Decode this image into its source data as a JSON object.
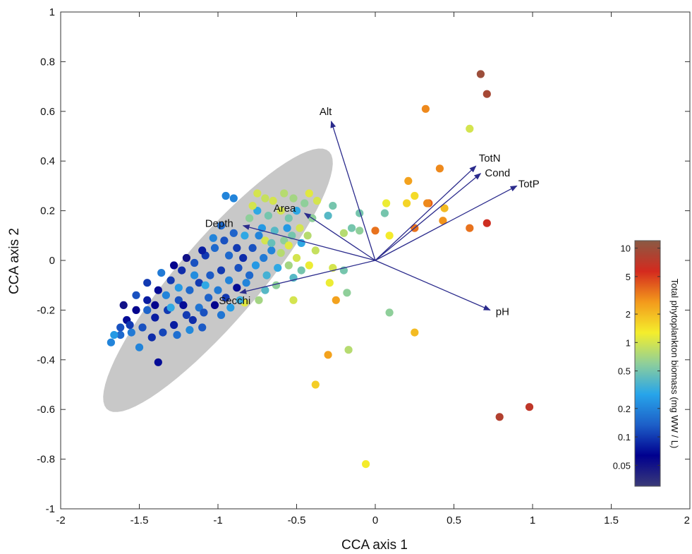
{
  "chart_data": {
    "type": "scatter",
    "xlabel": "CCA axis 1",
    "ylabel": "CCA axis 2",
    "xlim": [
      -2,
      2
    ],
    "ylim": [
      -1,
      1
    ],
    "xticks": [
      -2,
      -1.5,
      -1,
      -0.5,
      0,
      0.5,
      1,
      1.5,
      2
    ],
    "xtick_labels": [
      "-2",
      "-1.5",
      "-1",
      "-0.5",
      "0",
      "0.5",
      "1",
      "1.5",
      "2"
    ],
    "yticks": [
      -1,
      -0.8,
      -0.6,
      -0.4,
      -0.2,
      0,
      0.2,
      0.4,
      0.6,
      0.8,
      1
    ],
    "ytick_labels": [
      "-1",
      "-0.8",
      "-0.6",
      "-0.4",
      "-0.2",
      "0",
      "0.2",
      "0.4",
      "0.6",
      "0.8",
      "1"
    ],
    "grid": false,
    "ellipse": {
      "cx": -1.0,
      "cy": -0.08,
      "rx": 0.88,
      "ry": 0.2,
      "angle_deg": 35,
      "color": "#c8c8c8"
    },
    "vectors": [
      {
        "label": "Alt",
        "x": -0.28,
        "y": 0.56
      },
      {
        "label": "TotN",
        "x": 0.64,
        "y": 0.38
      },
      {
        "label": "Cond",
        "x": 0.67,
        "y": 0.35
      },
      {
        "label": "TotP",
        "x": 0.9,
        "y": 0.3
      },
      {
        "label": "Area",
        "x": -0.45,
        "y": 0.19
      },
      {
        "label": "Depth",
        "x": -0.84,
        "y": 0.14
      },
      {
        "label": "Secchi",
        "x": -0.86,
        "y": -0.13
      },
      {
        "label": "pH",
        "x": 0.73,
        "y": -0.2
      }
    ],
    "vector_color": "#2b2b8c",
    "colorbar": {
      "title": "Total phytoplankton biomass (mg WW / L)",
      "scale": "log",
      "range": [
        0.03,
        12
      ],
      "ticks": [
        0.05,
        0.1,
        0.2,
        0.5,
        1,
        2,
        5,
        10
      ],
      "tick_labels": [
        "0.05",
        "0.1",
        "0.2",
        "0.5",
        "1",
        "2",
        "5",
        "10"
      ],
      "colors": [
        "#3a3a78",
        "#00008f",
        "#1d5fc8",
        "#27a5ea",
        "#8fcf9a",
        "#f4ee2c",
        "#f39a1c",
        "#d42a1e",
        "#8a5a44"
      ]
    },
    "points": [
      {
        "x": 0.67,
        "y": 0.75,
        "v": 10
      },
      {
        "x": 0.71,
        "y": 0.67,
        "v": 9
      },
      {
        "x": 0.32,
        "y": 0.61,
        "v": 3
      },
      {
        "x": 0.6,
        "y": 0.53,
        "v": 1
      },
      {
        "x": 0.41,
        "y": 0.37,
        "v": 3
      },
      {
        "x": 0.21,
        "y": 0.32,
        "v": 2.5
      },
      {
        "x": 0.25,
        "y": 0.26,
        "v": 1.5
      },
      {
        "x": 0.34,
        "y": 0.23,
        "v": 4
      },
      {
        "x": 0.33,
        "y": 0.23,
        "v": 3
      },
      {
        "x": 0.2,
        "y": 0.23,
        "v": 1.6
      },
      {
        "x": 0.44,
        "y": 0.21,
        "v": 2
      },
      {
        "x": 0.07,
        "y": 0.23,
        "v": 1.2
      },
      {
        "x": 0.43,
        "y": 0.16,
        "v": 2.8
      },
      {
        "x": 0.06,
        "y": 0.19,
        "v": 0.5
      },
      {
        "x": 0.71,
        "y": 0.15,
        "v": 6
      },
      {
        "x": 0.6,
        "y": 0.13,
        "v": 3.5
      },
      {
        "x": 0.25,
        "y": 0.13,
        "v": 3.5
      },
      {
        "x": 0.0,
        "y": 0.12,
        "v": 3.5
      },
      {
        "x": 0.09,
        "y": 0.1,
        "v": 1.3
      },
      {
        "x": -0.1,
        "y": 0.19,
        "v": 0.5
      },
      {
        "x": -0.15,
        "y": 0.13,
        "v": 0.5
      },
      {
        "x": -0.1,
        "y": 0.12,
        "v": 0.6
      },
      {
        "x": -0.2,
        "y": 0.11,
        "v": 0.8
      },
      {
        "x": -0.27,
        "y": 0.22,
        "v": 0.5
      },
      {
        "x": -0.37,
        "y": 0.24,
        "v": 1
      },
      {
        "x": -0.45,
        "y": 0.23,
        "v": 0.6
      },
      {
        "x": -0.3,
        "y": 0.18,
        "v": 0.4
      },
      {
        "x": -0.27,
        "y": -0.03,
        "v": 1
      },
      {
        "x": -0.2,
        "y": -0.04,
        "v": 0.5
      },
      {
        "x": -0.29,
        "y": -0.09,
        "v": 1.2
      },
      {
        "x": -0.18,
        "y": -0.13,
        "v": 0.6
      },
      {
        "x": -0.25,
        "y": -0.16,
        "v": 2.5
      },
      {
        "x": 0.09,
        "y": -0.21,
        "v": 0.6
      },
      {
        "x": 0.25,
        "y": -0.29,
        "v": 2
      },
      {
        "x": -0.17,
        "y": -0.36,
        "v": 0.8
      },
      {
        "x": -0.3,
        "y": -0.38,
        "v": 2.5
      },
      {
        "x": -0.38,
        "y": -0.5,
        "v": 1.7
      },
      {
        "x": 0.98,
        "y": -0.59,
        "v": 7
      },
      {
        "x": 0.79,
        "y": -0.63,
        "v": 8
      },
      {
        "x": -0.06,
        "y": -0.82,
        "v": 1.3
      },
      {
        "x": -0.52,
        "y": -0.16,
        "v": 1
      },
      {
        "x": -0.75,
        "y": 0.27,
        "v": 1
      },
      {
        "x": -0.7,
        "y": 0.25,
        "v": 0.9
      },
      {
        "x": -0.65,
        "y": 0.24,
        "v": 1
      },
      {
        "x": -0.58,
        "y": 0.27,
        "v": 0.8
      },
      {
        "x": -0.52,
        "y": 0.25,
        "v": 0.7
      },
      {
        "x": -0.6,
        "y": 0.2,
        "v": 1
      },
      {
        "x": -0.55,
        "y": 0.17,
        "v": 0.5
      },
      {
        "x": -0.5,
        "y": 0.2,
        "v": 0.3
      },
      {
        "x": -0.48,
        "y": 0.13,
        "v": 1
      },
      {
        "x": -0.53,
        "y": 0.1,
        "v": 0.5
      },
      {
        "x": -0.47,
        "y": 0.07,
        "v": 0.3
      },
      {
        "x": -0.58,
        "y": 0.08,
        "v": 0.6
      },
      {
        "x": -0.64,
        "y": 0.12,
        "v": 0.4
      },
      {
        "x": -0.68,
        "y": 0.18,
        "v": 0.5
      },
      {
        "x": -0.72,
        "y": 0.13,
        "v": 0.25
      },
      {
        "x": -0.75,
        "y": 0.2,
        "v": 0.3
      },
      {
        "x": -0.8,
        "y": 0.17,
        "v": 0.6
      },
      {
        "x": -0.78,
        "y": 0.22,
        "v": 1
      },
      {
        "x": -0.9,
        "y": 0.25,
        "v": 0.2
      },
      {
        "x": -0.95,
        "y": 0.26,
        "v": 0.2
      },
      {
        "x": -0.83,
        "y": 0.1,
        "v": 0.3
      },
      {
        "x": -0.6,
        "y": 0.03,
        "v": 0.8
      },
      {
        "x": -0.55,
        "y": -0.02,
        "v": 0.7
      },
      {
        "x": -0.5,
        "y": 0.01,
        "v": 1
      },
      {
        "x": -0.47,
        "y": -0.04,
        "v": 0.5
      },
      {
        "x": -0.52,
        "y": -0.07,
        "v": 0.4
      },
      {
        "x": -0.62,
        "y": -0.03,
        "v": 0.3
      },
      {
        "x": -0.66,
        "y": 0.04,
        "v": 0.2
      },
      {
        "x": -0.7,
        "y": 0.08,
        "v": 1
      },
      {
        "x": -0.63,
        "y": -0.1,
        "v": 0.6
      },
      {
        "x": -0.7,
        "y": -0.12,
        "v": 0.4
      },
      {
        "x": -0.74,
        "y": -0.16,
        "v": 0.7
      },
      {
        "x": -0.83,
        "y": -0.17,
        "v": 1.1
      },
      {
        "x": -0.8,
        "y": -0.06,
        "v": 0.15
      },
      {
        "x": -0.87,
        "y": -0.03,
        "v": 0.12
      },
      {
        "x": -0.93,
        "y": 0.02,
        "v": 0.15
      },
      {
        "x": -0.98,
        "y": -0.04,
        "v": 0.1
      },
      {
        "x": -1.05,
        "y": -0.06,
        "v": 0.13
      },
      {
        "x": -1.12,
        "y": -0.09,
        "v": 0.1
      },
      {
        "x": -1.18,
        "y": -0.12,
        "v": 0.15
      },
      {
        "x": -1.25,
        "y": -0.16,
        "v": 0.12
      },
      {
        "x": -1.32,
        "y": -0.2,
        "v": 0.1
      },
      {
        "x": -1.4,
        "y": -0.23,
        "v": 0.08
      },
      {
        "x": -1.48,
        "y": -0.27,
        "v": 0.12
      },
      {
        "x": -1.55,
        "y": -0.29,
        "v": 0.18
      },
      {
        "x": -1.62,
        "y": -0.3,
        "v": 0.15
      },
      {
        "x": -1.68,
        "y": -0.33,
        "v": 0.2
      },
      {
        "x": -1.66,
        "y": -0.3,
        "v": 0.25
      },
      {
        "x": -1.58,
        "y": -0.24,
        "v": 0.07
      },
      {
        "x": -1.52,
        "y": -0.2,
        "v": 0.06
      },
      {
        "x": -1.45,
        "y": -0.16,
        "v": 0.08
      },
      {
        "x": -1.38,
        "y": -0.12,
        "v": 0.07
      },
      {
        "x": -1.3,
        "y": -0.08,
        "v": 0.1
      },
      {
        "x": -1.23,
        "y": -0.04,
        "v": 0.09
      },
      {
        "x": -1.15,
        "y": -0.01,
        "v": 0.12
      },
      {
        "x": -1.08,
        "y": 0.02,
        "v": 0.1
      },
      {
        "x": -1.02,
        "y": 0.05,
        "v": 0.15
      },
      {
        "x": -0.96,
        "y": 0.08,
        "v": 0.12
      },
      {
        "x": -0.9,
        "y": 0.11,
        "v": 0.14
      },
      {
        "x": -0.88,
        "y": 0.05,
        "v": 0.1
      },
      {
        "x": -0.93,
        "y": -0.08,
        "v": 0.2
      },
      {
        "x": -1.0,
        "y": -0.12,
        "v": 0.18
      },
      {
        "x": -1.06,
        "y": -0.15,
        "v": 0.14
      },
      {
        "x": -1.12,
        "y": -0.19,
        "v": 0.17
      },
      {
        "x": -1.2,
        "y": -0.22,
        "v": 0.1
      },
      {
        "x": -1.28,
        "y": -0.26,
        "v": 0.08
      },
      {
        "x": -1.35,
        "y": -0.29,
        "v": 0.11
      },
      {
        "x": -1.42,
        "y": -0.31,
        "v": 0.09
      },
      {
        "x": -1.5,
        "y": -0.35,
        "v": 0.2
      },
      {
        "x": -1.38,
        "y": -0.41,
        "v": 0.07
      },
      {
        "x": -1.6,
        "y": -0.18,
        "v": 0.05
      },
      {
        "x": -1.52,
        "y": -0.14,
        "v": 0.12
      },
      {
        "x": -1.45,
        "y": -0.09,
        "v": 0.1
      },
      {
        "x": -1.36,
        "y": -0.05,
        "v": 0.18
      },
      {
        "x": -1.28,
        "y": -0.02,
        "v": 0.06
      },
      {
        "x": -1.2,
        "y": 0.01,
        "v": 0.05
      },
      {
        "x": -1.1,
        "y": 0.04,
        "v": 0.08
      },
      {
        "x": -1.03,
        "y": 0.09,
        "v": 0.2
      },
      {
        "x": -0.98,
        "y": 0.14,
        "v": 0.15
      },
      {
        "x": -1.08,
        "y": -0.1,
        "v": 0.3
      },
      {
        "x": -1.15,
        "y": -0.06,
        "v": 0.22
      },
      {
        "x": -1.25,
        "y": -0.11,
        "v": 0.25
      },
      {
        "x": -1.33,
        "y": -0.14,
        "v": 0.2
      },
      {
        "x": -1.3,
        "y": -0.19,
        "v": 0.3
      },
      {
        "x": -1.22,
        "y": -0.18,
        "v": 0.07
      },
      {
        "x": -1.16,
        "y": -0.24,
        "v": 0.09
      },
      {
        "x": -1.09,
        "y": -0.21,
        "v": 0.12
      },
      {
        "x": -1.02,
        "y": -0.18,
        "v": 0.06
      },
      {
        "x": -0.95,
        "y": -0.15,
        "v": 0.1
      },
      {
        "x": -0.88,
        "y": -0.11,
        "v": 0.07
      },
      {
        "x": -0.82,
        "y": -0.09,
        "v": 0.2
      },
      {
        "x": -0.76,
        "y": -0.02,
        "v": 0.25
      },
      {
        "x": -0.71,
        "y": 0.01,
        "v": 0.18
      },
      {
        "x": -0.78,
        "y": 0.05,
        "v": 0.12
      },
      {
        "x": -0.84,
        "y": 0.01,
        "v": 0.09
      },
      {
        "x": -1.45,
        "y": -0.2,
        "v": 0.14
      },
      {
        "x": -1.4,
        "y": -0.18,
        "v": 0.06
      },
      {
        "x": -1.56,
        "y": -0.26,
        "v": 0.1
      },
      {
        "x": -1.62,
        "y": -0.27,
        "v": 0.12
      },
      {
        "x": -1.26,
        "y": -0.3,
        "v": 0.16
      },
      {
        "x": -1.18,
        "y": -0.28,
        "v": 0.21
      },
      {
        "x": -1.1,
        "y": -0.27,
        "v": 0.13
      },
      {
        "x": -0.98,
        "y": -0.22,
        "v": 0.17
      },
      {
        "x": -0.92,
        "y": -0.19,
        "v": 0.26
      },
      {
        "x": -0.86,
        "y": -0.16,
        "v": 0.32
      },
      {
        "x": -0.69,
        "y": -0.06,
        "v": 0.35
      },
      {
        "x": -0.66,
        "y": 0.07,
        "v": 0.45
      },
      {
        "x": -0.74,
        "y": 0.1,
        "v": 0.2
      },
      {
        "x": -0.56,
        "y": 0.13,
        "v": 0.25
      },
      {
        "x": -0.42,
        "y": 0.27,
        "v": 1.1
      },
      {
        "x": -0.4,
        "y": 0.17,
        "v": 0.6
      },
      {
        "x": -0.43,
        "y": 0.1,
        "v": 0.8
      },
      {
        "x": -0.38,
        "y": 0.04,
        "v": 0.9
      },
      {
        "x": -0.42,
        "y": -0.02,
        "v": 1.2
      },
      {
        "x": -0.55,
        "y": 0.06,
        "v": 1.1
      }
    ]
  }
}
